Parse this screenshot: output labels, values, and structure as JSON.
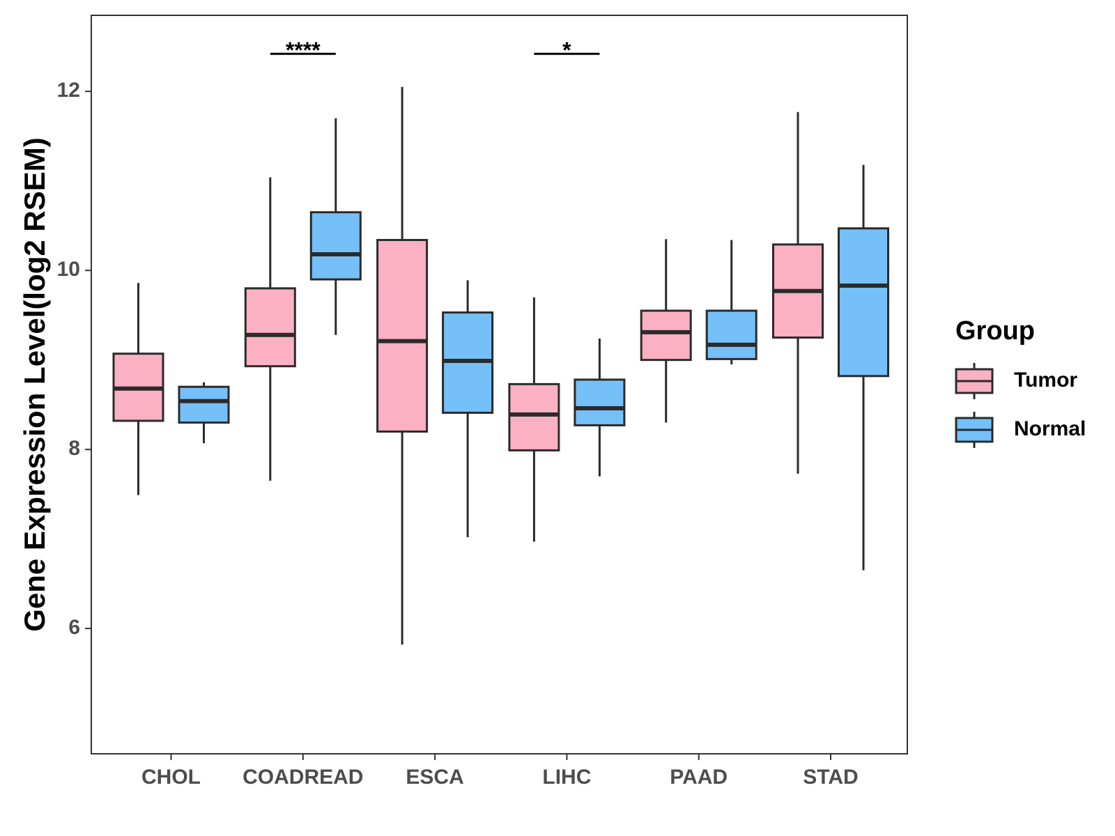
{
  "chart_data": {
    "type": "boxplot",
    "title": "",
    "xlabel": "",
    "ylabel": "Gene Expression Level(log2 RSEM)",
    "ylim": [
      4.6,
      12.85
    ],
    "yticks": [
      6,
      8,
      10,
      12
    ],
    "categories": [
      "CHOL",
      "COADREAD",
      "ESCA",
      "LIHC",
      "PAAD",
      "STAD"
    ],
    "legend": {
      "title": "Group",
      "position": "right",
      "entries": [
        {
          "name": "Tumor",
          "color": "#fbb0c3"
        },
        {
          "name": "Normal",
          "color": "#75c0f8"
        }
      ]
    },
    "series": [
      {
        "name": "Tumor",
        "color": "#fbb0c3",
        "boxes": [
          {
            "category": "CHOL",
            "min": 7.49,
            "q1": 8.32,
            "median": 8.68,
            "q3": 9.07,
            "max": 9.86
          },
          {
            "category": "COADREAD",
            "min": 7.65,
            "q1": 8.93,
            "median": 9.28,
            "q3": 9.8,
            "max": 11.04
          },
          {
            "category": "ESCA",
            "min": 5.82,
            "q1": 8.2,
            "median": 9.21,
            "q3": 10.34,
            "max": 12.05
          },
          {
            "category": "LIHC",
            "min": 6.97,
            "q1": 7.99,
            "median": 8.39,
            "q3": 8.73,
            "max": 9.7
          },
          {
            "category": "PAAD",
            "min": 8.3,
            "q1": 9.0,
            "median": 9.31,
            "q3": 9.55,
            "max": 10.35
          },
          {
            "category": "STAD",
            "min": 7.73,
            "q1": 9.25,
            "median": 9.77,
            "q3": 10.29,
            "max": 11.77
          }
        ]
      },
      {
        "name": "Normal",
        "color": "#75c0f8",
        "boxes": [
          {
            "category": "CHOL",
            "min": 8.07,
            "q1": 8.3,
            "median": 8.54,
            "q3": 8.7,
            "max": 8.75
          },
          {
            "category": "COADREAD",
            "min": 9.28,
            "q1": 9.9,
            "median": 10.18,
            "q3": 10.65,
            "max": 11.7
          },
          {
            "category": "ESCA",
            "min": 7.02,
            "q1": 8.41,
            "median": 8.99,
            "q3": 9.53,
            "max": 9.89
          },
          {
            "category": "LIHC",
            "min": 7.7,
            "q1": 8.27,
            "median": 8.46,
            "q3": 8.78,
            "max": 9.24
          },
          {
            "category": "PAAD",
            "min": 8.95,
            "q1": 9.01,
            "median": 9.17,
            "q3": 9.55,
            "max": 10.34
          },
          {
            "category": "STAD",
            "min": 6.65,
            "q1": 8.82,
            "median": 9.83,
            "q3": 10.47,
            "max": 11.18
          }
        ]
      }
    ],
    "annotations": [
      {
        "category": "COADREAD",
        "label": "****",
        "y": 12.42
      },
      {
        "category": "LIHC",
        "label": "*",
        "y": 12.42
      }
    ]
  }
}
